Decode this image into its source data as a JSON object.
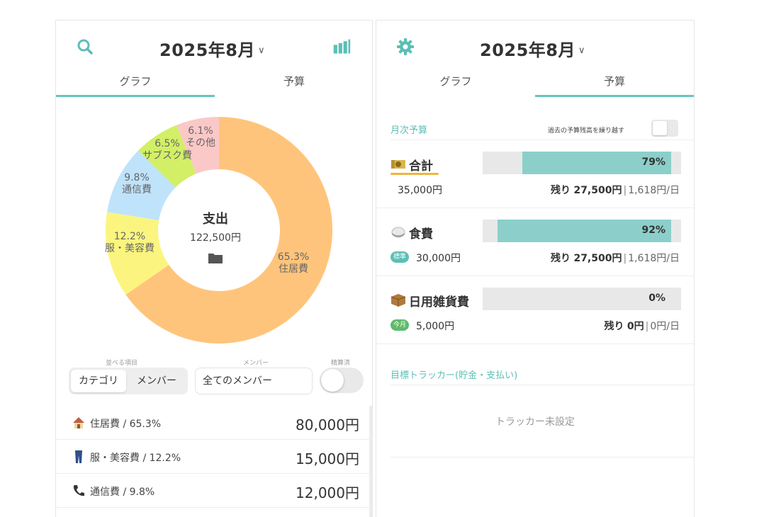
{
  "left": {
    "month_title": "2025年8月",
    "tabs": [
      "グラフ",
      "予算"
    ],
    "active_tab": 0,
    "icons": {
      "search": "search-icon",
      "chart": "bar-chart-icon"
    },
    "center_title": "支出",
    "center_amount": "122,500円",
    "center_icon": "folder-icon",
    "chart_data": {
      "type": "pie",
      "variant": "donut",
      "categories": [
        "住居費",
        "服・美容費",
        "通信費",
        "サブスク費",
        "その他"
      ],
      "values": [
        65.3,
        12.2,
        9.8,
        6.5,
        6.1
      ],
      "labels": [
        "65.3%",
        "12.2%",
        "9.8%",
        "6.5%",
        "6.1%"
      ],
      "colors": [
        "#ffc47b",
        "#fbf57f",
        "#bfe3fb",
        "#d2ef66",
        "#fbc8c8"
      ]
    },
    "controls": {
      "sort_caption": "並べる項目",
      "sort_options": [
        "カテゴリ",
        "メンバー"
      ],
      "sort_selected": 0,
      "member_caption": "メンバー",
      "member_value": "全てのメンバー",
      "settled_caption": "精算済"
    },
    "list": [
      {
        "icon": "house-icon",
        "label": "住居費",
        "pct": "/ 65.3%",
        "amount": "80,000円"
      },
      {
        "icon": "jeans-icon",
        "label": "服・美容費",
        "pct": "/ 12.2%",
        "amount": "15,000円"
      },
      {
        "icon": "phone-icon",
        "label": "通信費",
        "pct": "/ 9.8%",
        "amount": "12,000円"
      }
    ]
  },
  "right": {
    "month_title": "2025年8月",
    "tabs": [
      "グラフ",
      "予算"
    ],
    "active_tab": 1,
    "icons": {
      "settings": "gear-icon"
    },
    "monthly_section": "月次予算",
    "carry_over_label": "過去の予算残高を繰り越す",
    "budgets": [
      {
        "icon": "cash-icon",
        "name": "合計",
        "badge": "",
        "amount": "35,000円",
        "percent": 79,
        "percent_label": "79%",
        "remain_label": "残り",
        "remain_amount": "27,500円",
        "per_day": "1,618円/日"
      },
      {
        "icon": "rice-icon",
        "name": "食費",
        "badge": "標準",
        "amount": "30,000円",
        "percent": 92,
        "percent_label": "92%",
        "remain_label": "残り",
        "remain_amount": "27,500円",
        "per_day": "1,618円/日"
      },
      {
        "icon": "box-icon",
        "name": "日用雑貨費",
        "badge": "今月",
        "amount": "5,000円",
        "percent": 0,
        "percent_label": "0%",
        "remain_label": "残り",
        "remain_amount": "0円",
        "per_day": "0円/日"
      }
    ],
    "tracker_section": "目標トラッカー(貯金・支払い)",
    "tracker_empty": "トラッカー未設定"
  },
  "colors": {
    "accent": "#5bbfb6",
    "bar_fill": "#8ccfca",
    "bar_track": "#e8e8e8"
  }
}
